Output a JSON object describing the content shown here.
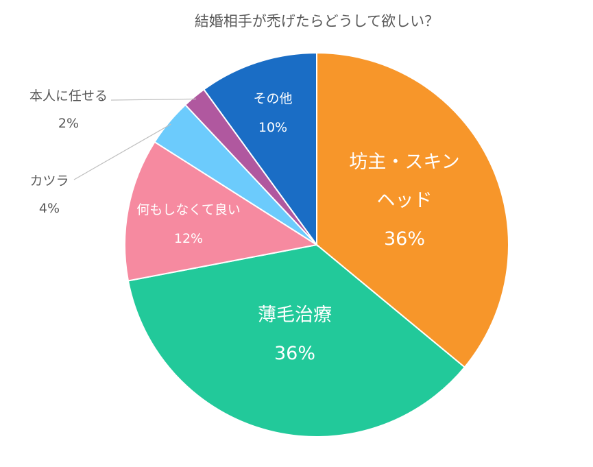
{
  "chart_data": {
    "type": "pie",
    "title": "結婚相手が禿げたらどうして欲しい？",
    "unit": "%",
    "slices": [
      {
        "name": "坊主・スキンヘッド",
        "label_lines": [
          "坊主・スキン",
          "ヘッド"
        ],
        "value": 36,
        "value_label": "36%",
        "color": "#F7962A"
      },
      {
        "name": "薄毛治療",
        "label_lines": [
          "薄毛治療"
        ],
        "value": 36,
        "value_label": "36%",
        "color": "#22C99A"
      },
      {
        "name": "何もしなくて良い",
        "label_lines": [
          "何もしなくて良い"
        ],
        "value": 12,
        "value_label": "12%",
        "color": "#F68AA0"
      },
      {
        "name": "カツラ",
        "label_lines": [
          "カツラ"
        ],
        "value": 4,
        "value_label": "4%",
        "color": "#6CCBFC"
      },
      {
        "name": "本人に任せる",
        "label_lines": [
          "本人に任せる"
        ],
        "value": 2,
        "value_label": "2%",
        "color": "#B0589F"
      },
      {
        "name": "その他",
        "label_lines": [
          "その他"
        ],
        "value": 10,
        "value_label": "10%",
        "color": "#1A6DC5"
      }
    ]
  }
}
